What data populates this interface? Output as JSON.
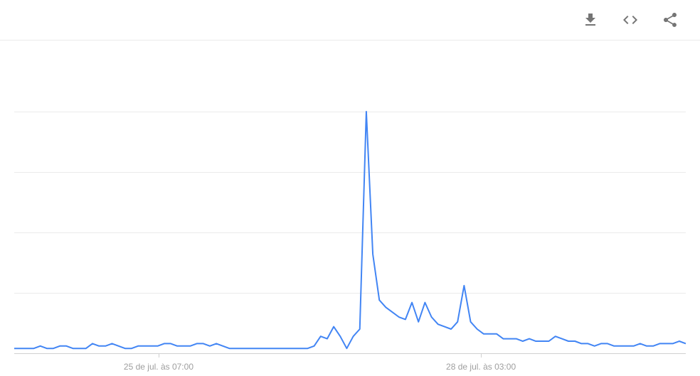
{
  "toolbar": {
    "download_title": "Download",
    "embed_title": "Embed",
    "share_title": "Share"
  },
  "chart": {
    "type": "line",
    "line_color": "#4285f4",
    "line_width": 2,
    "background_color": "#ffffff",
    "grid_color": "#ebebeb",
    "baseline_color": "#d0d0d0",
    "ylim": [
      0,
      100
    ],
    "y_gridlines": [
      0,
      25,
      50,
      75,
      100
    ],
    "x_axis": {
      "ticks": [
        {
          "pos_pct": 21.5,
          "label": "25 de jul. às 07:00"
        },
        {
          "pos_pct": 69.5,
          "label": "28 de jul. às 03:00"
        }
      ],
      "label_color": "#9e9e9e",
      "label_fontsize": 12
    },
    "values": [
      2,
      2,
      2,
      2,
      3,
      2,
      2,
      3,
      3,
      2,
      2,
      2,
      4,
      3,
      3,
      4,
      3,
      2,
      2,
      3,
      3,
      3,
      3,
      4,
      4,
      3,
      3,
      3,
      4,
      4,
      3,
      4,
      3,
      2,
      2,
      2,
      2,
      2,
      2,
      2,
      2,
      2,
      2,
      2,
      2,
      2,
      3,
      7,
      6,
      11,
      7,
      2,
      7,
      10,
      100,
      41,
      22,
      19,
      17,
      15,
      14,
      21,
      13,
      21,
      15,
      12,
      11,
      10,
      13,
      28,
      13,
      10,
      8,
      8,
      8,
      6,
      6,
      6,
      5,
      6,
      5,
      5,
      5,
      7,
      6,
      5,
      5,
      4,
      4,
      3,
      4,
      4,
      3,
      3,
      3,
      3,
      4,
      3,
      3,
      4,
      4,
      4,
      5,
      4
    ]
  }
}
